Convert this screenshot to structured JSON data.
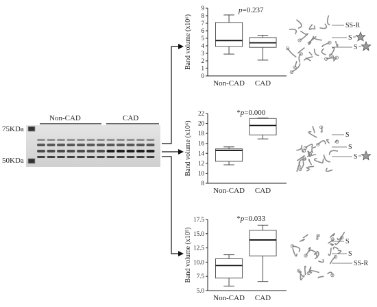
{
  "figure": {
    "blot": {
      "group_labels": [
        "Non-CAD",
        "CAD"
      ],
      "marker_top": "75KDa",
      "marker_bottom": "50KDa"
    },
    "chart_data": [
      {
        "type": "box",
        "categories": [
          "Non-CAD",
          "CAD"
        ],
        "ylabel": "Band volume (x10⁶)",
        "ylim": [
          0,
          9
        ],
        "yticks": [
          "0",
          "1",
          "2",
          "3",
          "4",
          "5",
          "6",
          "7",
          "8",
          "9"
        ],
        "boxes": [
          {
            "min": 2.9,
            "q1": 3.9,
            "median": 4.7,
            "q3": 7.1,
            "max": 8.1
          },
          {
            "min": 2.1,
            "q1": 3.8,
            "median": 4.4,
            "q3": 5.1,
            "max": 5.4
          }
        ],
        "annotation_prefix": "",
        "annotation_p": "p",
        "annotation_rest": "=0.237"
      },
      {
        "type": "box",
        "categories": [
          "Non-CAD",
          "CAD"
        ],
        "ylabel": "Band volume (x10⁶)",
        "ylim": [
          8,
          22
        ],
        "yticks": [
          "8",
          "10",
          "12",
          "14",
          "16",
          "18",
          "20",
          "22"
        ],
        "boxes": [
          {
            "min": 11.7,
            "q1": 12.4,
            "median": 14.6,
            "q3": 14.9,
            "max": 15.3
          },
          {
            "min": 16.9,
            "q1": 17.7,
            "median": 19.6,
            "q3": 21.0,
            "max": 21.1
          }
        ],
        "annotation_prefix": "*",
        "annotation_p": "p",
        "annotation_rest": "=0.000"
      },
      {
        "type": "box",
        "categories": [
          "Non-CAD",
          "CAD"
        ],
        "ylabel": "Band volume (x10⁵)",
        "ylim": [
          5.0,
          17.5
        ],
        "yticks": [
          "5.0",
          "7.5",
          "10.0",
          "12.5",
          "15.0",
          "17.5"
        ],
        "boxes": [
          {
            "min": 5.8,
            "q1": 7.2,
            "median": 9.4,
            "q3": 10.6,
            "max": 11.3
          },
          {
            "min": 6.6,
            "q1": 11.1,
            "median": 13.9,
            "q3": 15.6,
            "max": 16.5
          }
        ],
        "annotation_prefix": "*",
        "annotation_p": "p",
        "annotation_rest": "=0.033"
      }
    ],
    "structures": [
      {
        "labels": [
          "SS-R",
          "S",
          "S"
        ],
        "stars": 2
      },
      {
        "labels": [
          "S",
          "S",
          "S"
        ],
        "stars": 1
      },
      {
        "labels": [
          "S",
          "S",
          "SS-R"
        ],
        "stars": 0
      }
    ]
  }
}
